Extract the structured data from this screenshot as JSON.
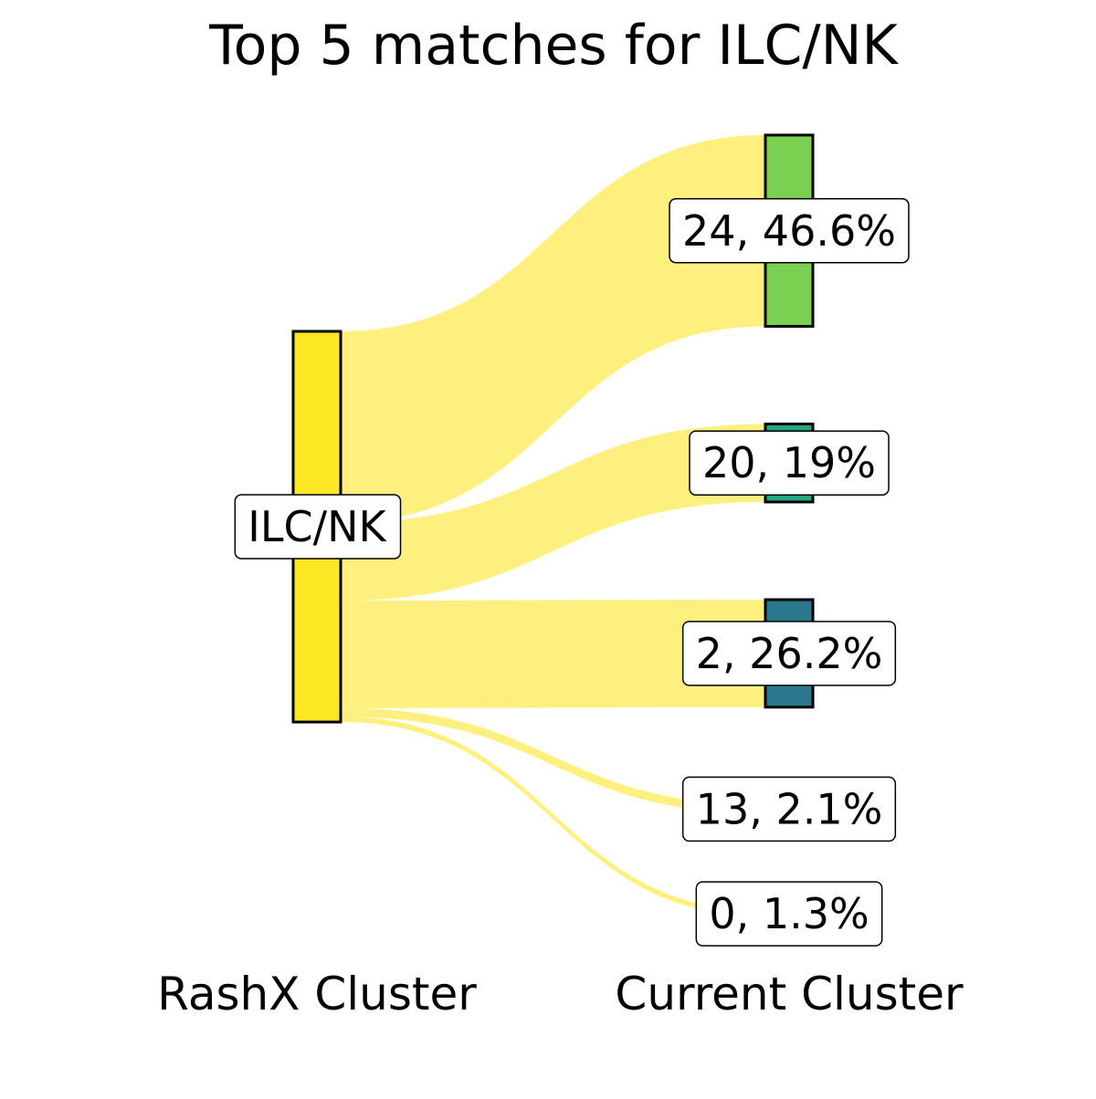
{
  "chart_data": {
    "type": "sankey",
    "title": "Top 5 matches for ILC/NK",
    "source": {
      "label": "ILC/NK",
      "color": "#fde725"
    },
    "flow_color": "#fef07e",
    "targets": [
      {
        "cluster": "24",
        "percent": 46.6,
        "label": "24, 46.6%",
        "color": "#7ad151"
      },
      {
        "cluster": "20",
        "percent": 19.0,
        "label": "20, 19%",
        "color": "#22a884"
      },
      {
        "cluster": "2",
        "percent": 26.2,
        "label": "2, 26.2%",
        "color": "#2a788e"
      },
      {
        "cluster": "13",
        "percent": 2.1,
        "label": "13, 2.1%",
        "color": "#fef07e"
      },
      {
        "cluster": "0",
        "percent": 1.3,
        "label": "0, 1.3%",
        "color": "#fef07e"
      }
    ],
    "left_axis_label": "RashX Cluster",
    "right_axis_label": "Current Cluster"
  }
}
